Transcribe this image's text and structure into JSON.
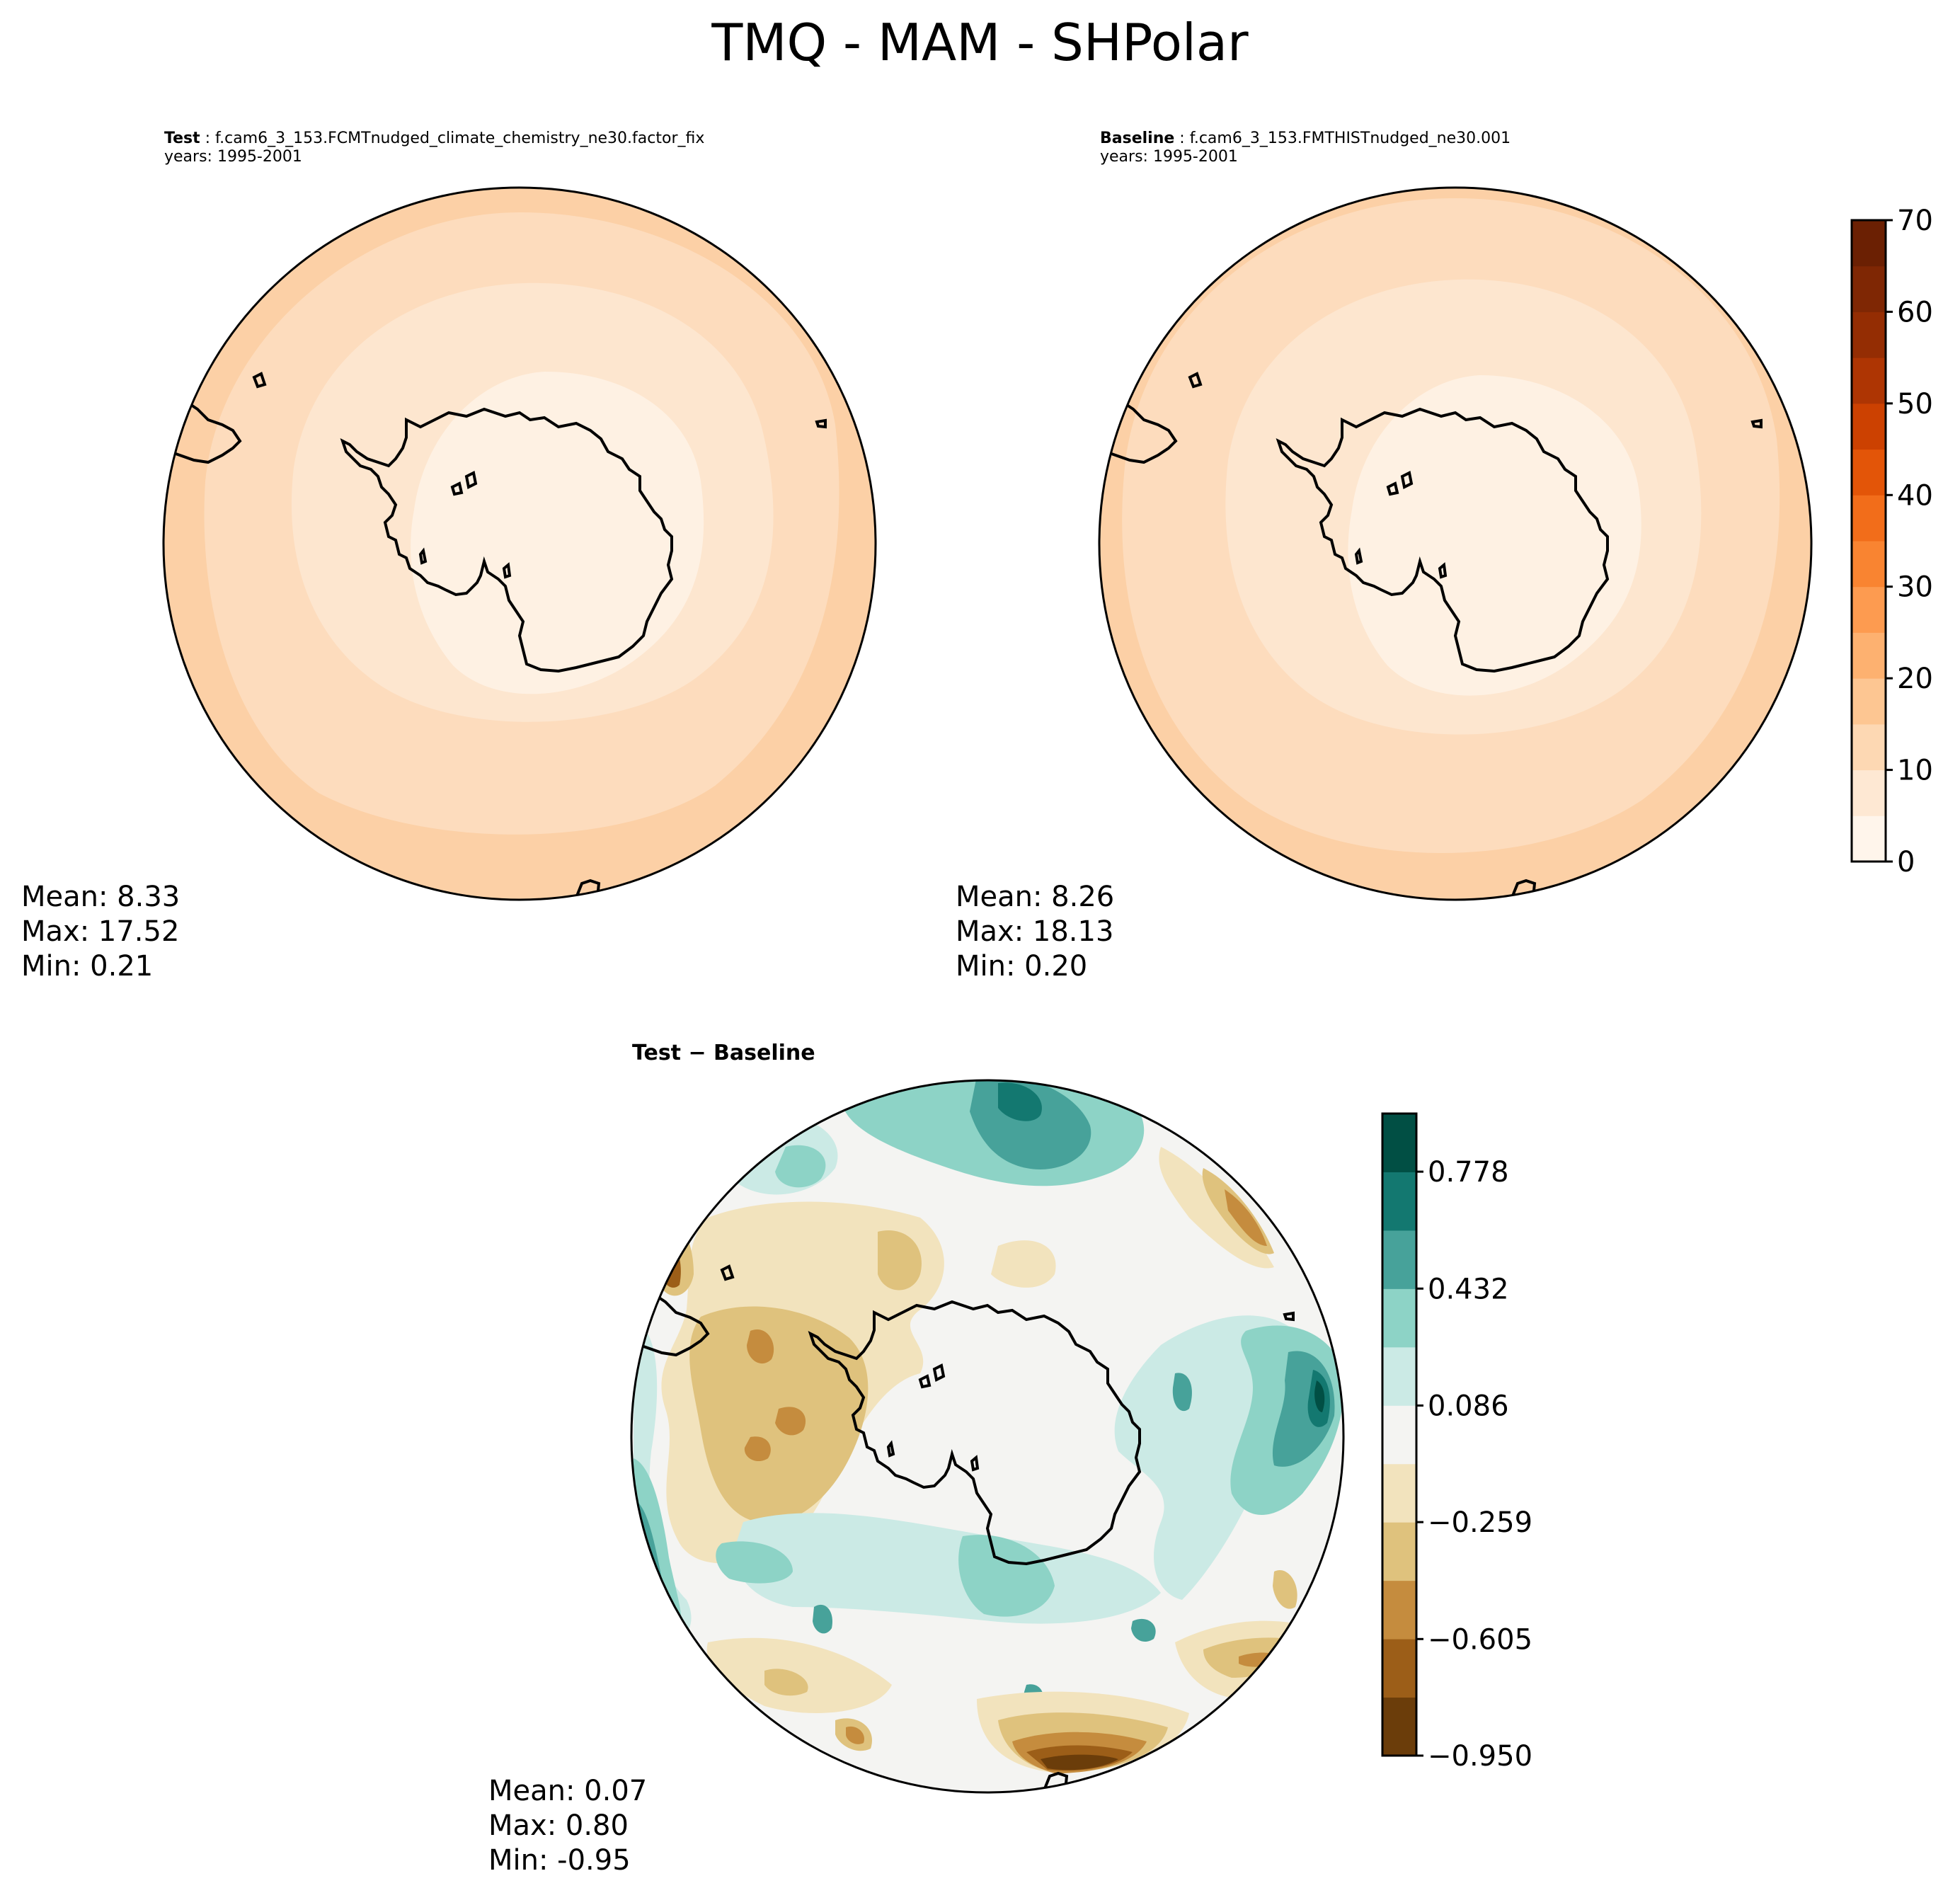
{
  "figure": {
    "title": "TMQ - MAM - SHPolar"
  },
  "panels": {
    "test": {
      "label": "Test",
      "case": "f.cam6_3_153.FCMTnudged_climate_chemistry_ne30.factor_fix",
      "years": "years: 1995-2001",
      "stats": {
        "mean": "Mean:  8.33",
        "max": "Max: 17.52",
        "min": "Min:  0.21"
      }
    },
    "baseline": {
      "label": "Baseline",
      "case": "f.cam6_3_153.FMTHISTnudged_ne30.001",
      "years": "years: 1995-2001",
      "stats": {
        "mean": "Mean:  8.26",
        "max": "Max: 18.13",
        "min": "Min:  0.20"
      }
    },
    "diff": {
      "label": "Test − Baseline",
      "stats": {
        "mean": "Mean:  0.07",
        "max": "Max:  0.80",
        "min": "Min: -0.95"
      }
    }
  },
  "chart_data": [
    {
      "type": "heatmap",
      "projection": "south-polar-stereographic",
      "variable": "TMQ",
      "season": "MAM",
      "panel": "test",
      "colormap": "Oranges",
      "levels": [
        0,
        5,
        10,
        15,
        20,
        25,
        30,
        35,
        40,
        45,
        50,
        55,
        60,
        65,
        70
      ],
      "colorbar_ticks": [
        "0",
        "10",
        "20",
        "30",
        "40",
        "50",
        "60",
        "70"
      ],
      "colorbar_colors": [
        "#fff5eb",
        "#fee8d3",
        "#fdd8b3",
        "#fdc692",
        "#fdb170",
        "#fd9b50",
        "#f98431",
        "#f26d1a",
        "#e35508",
        "#cc4101",
        "#ae3503",
        "#942d03",
        "#7f2704",
        "#6b2003"
      ],
      "field_bands": [
        {
          "approx_value": "0-5",
          "region": "interior"
        },
        {
          "approx_value": "5-10",
          "region": "coast/ring"
        },
        {
          "approx_value": "10-15",
          "region": "mid ocean"
        },
        {
          "approx_value": "15-20",
          "region": "outer ring"
        }
      ]
    },
    {
      "type": "heatmap",
      "projection": "south-polar-stereographic",
      "variable": "TMQ",
      "season": "MAM",
      "panel": "baseline",
      "colormap": "Oranges",
      "levels": [
        0,
        5,
        10,
        15,
        20,
        25,
        30,
        35,
        40,
        45,
        50,
        55,
        60,
        65,
        70
      ]
    },
    {
      "type": "heatmap",
      "projection": "south-polar-stereographic",
      "variable": "TMQ difference",
      "season": "MAM",
      "panel": "diff",
      "colormap": "BrBG",
      "levels": [
        -0.95,
        -0.778,
        -0.605,
        -0.432,
        -0.259,
        -0.086,
        0.086,
        0.259,
        0.432,
        0.605,
        0.778,
        0.95
      ],
      "colorbar_ticks": [
        "−0.950",
        "−0.605",
        "−0.259",
        "0.086",
        "0.432",
        "0.778"
      ],
      "colorbar_colors": [
        "#6b3d0a",
        "#9c5e18",
        "#c58c3e",
        "#dfc27d",
        "#f2e3bd",
        "#f4f4f2",
        "#cbeae5",
        "#8dd3c6",
        "#47a29a",
        "#137870",
        "#014f44"
      ]
    }
  ],
  "colors": {
    "test_bands": [
      "#fef1e3",
      "#fde6cf",
      "#fddcbd",
      "#fcd0a6"
    ],
    "diff_bg": "#f4f4f2"
  }
}
